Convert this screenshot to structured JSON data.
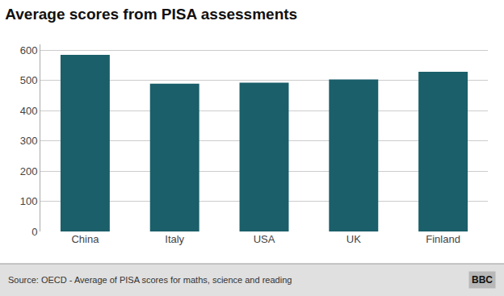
{
  "chart_data": {
    "type": "bar",
    "title": "Average scores from PISA assessments",
    "categories": [
      "China",
      "Italy",
      "USA",
      "UK",
      "Finland"
    ],
    "values": [
      585,
      490,
      493,
      504,
      529
    ],
    "color": "#1a5f6a",
    "ylim": [
      0,
      620
    ],
    "yticks": [
      0,
      100,
      200,
      300,
      400,
      500,
      600
    ],
    "grid": true,
    "annotations": [
      "Source: OECD - Average of PISA scores for maths, science and reading",
      "BBC"
    ]
  }
}
